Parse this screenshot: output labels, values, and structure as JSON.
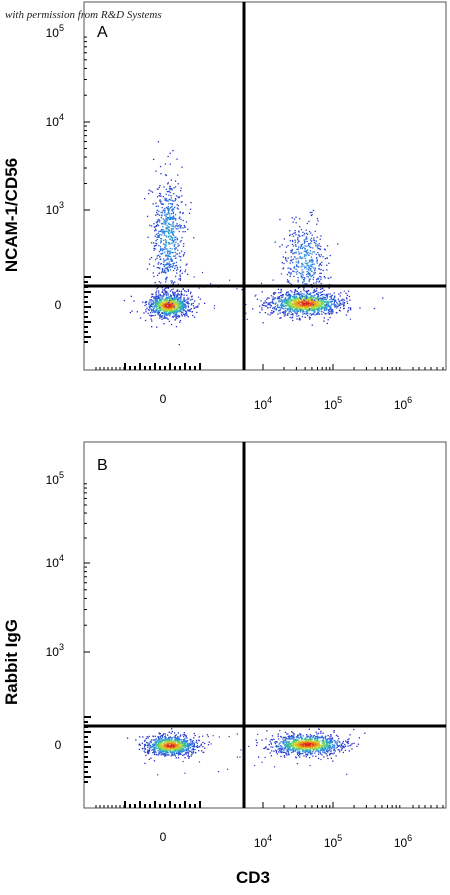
{
  "credit": "with permission from R&D Systems",
  "chart_data": [
    {
      "type": "scatter",
      "panel_label": "A",
      "ylabel": "NCAM-1/CD56",
      "xlabel": "",
      "x_ticks": [
        "0",
        "10^4",
        "10^5",
        "10^6"
      ],
      "y_ticks": [
        "0",
        "10^3",
        "10^4",
        "10^5"
      ],
      "x_scale": "biexponential",
      "y_scale": "biexponential",
      "quadrant_gate": {
        "x": 4000,
        "y": 150
      },
      "populations": [
        {
          "name": "",
          "x": 0,
          "y": 0,
          "description": "CD3- CD56- dense cluster"
        },
        {
          "name": "",
          "x": 0,
          "y": 500,
          "description": "CD3- CD56+ NK cells"
        },
        {
          "name": "",
          "x": 40000,
          "y": 0,
          "description": "CD3+ CD56- dense cluster"
        },
        {
          "name": "",
          "x": 40000,
          "y": 250,
          "description": "CD3+ CD56+ NKT-like cells"
        }
      ]
    },
    {
      "type": "scatter",
      "panel_label": "B",
      "ylabel": "Rabbit IgG",
      "xlabel": "CD3",
      "x_ticks": [
        "0",
        "10^4",
        "10^5",
        "10^6"
      ],
      "y_ticks": [
        "0",
        "10^3",
        "10^4",
        "10^5"
      ],
      "x_scale": "biexponential",
      "y_scale": "biexponential",
      "quadrant_gate": {
        "x": 4000,
        "y": 150
      },
      "populations": [
        {
          "name": "",
          "x": 0,
          "y": 0,
          "description": "CD3- isotype control cluster"
        },
        {
          "name": "",
          "x": 40000,
          "y": 0,
          "description": "CD3+ isotype control cluster"
        }
      ]
    }
  ]
}
